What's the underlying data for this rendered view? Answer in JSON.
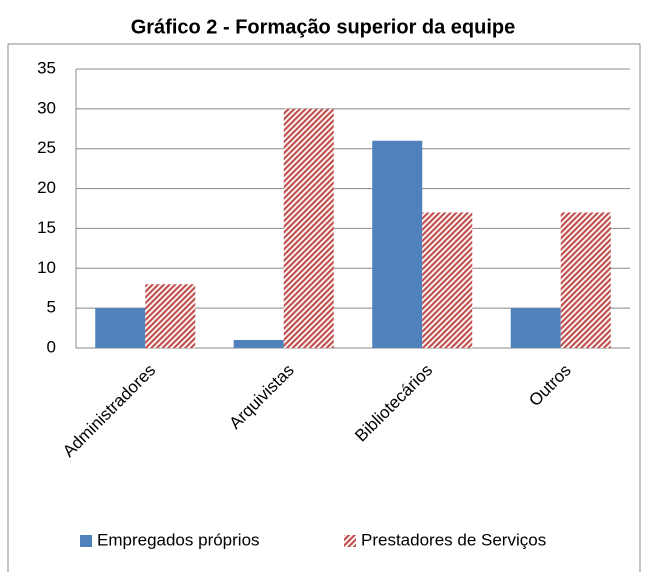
{
  "chart_data": {
    "type": "bar",
    "title": "Gráfico 2 - Formação superior da equipe",
    "categories": [
      "Administradores",
      "Arquivistas",
      "Bibliotecários",
      "Outros"
    ],
    "series": [
      {
        "name": "Empregados próprios",
        "color": "#4f81bd",
        "values": [
          5,
          1,
          26,
          5
        ]
      },
      {
        "name": "Prestadores de Serviços",
        "color": "#c0504d",
        "hatch": true,
        "values": [
          8,
          30,
          17,
          17
        ]
      }
    ],
    "ylim": [
      0,
      35
    ],
    "yticks": [
      0,
      5,
      10,
      15,
      20,
      25,
      30,
      35
    ],
    "grid": true,
    "legend": "bottom"
  }
}
